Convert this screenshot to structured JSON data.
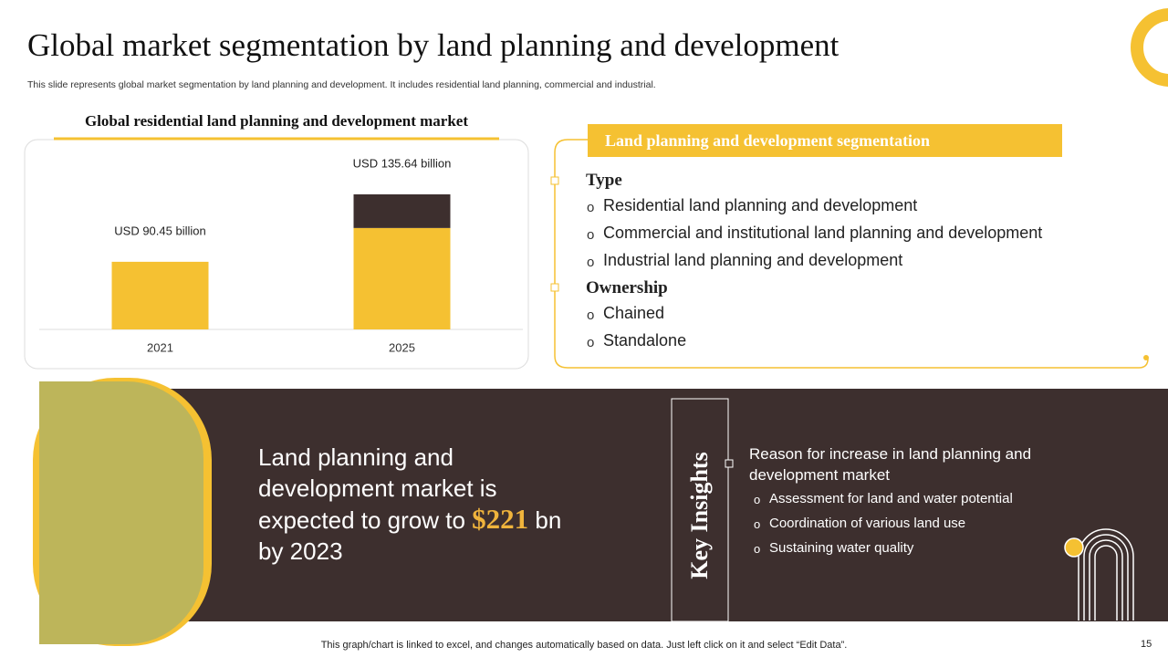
{
  "header": {
    "title": "Global market segmentation by land planning and development",
    "subtitle": "This slide represents global market segmentation by land planning and development. It includes residential land planning, commercial and industrial."
  },
  "chart_data": {
    "type": "bar",
    "title": "Global residential land planning and development market",
    "categories": [
      "2021",
      "2025"
    ],
    "series": [
      {
        "color": "#f5c132",
        "values": [
          90.45,
          135.64
        ],
        "value_labels": [
          "USD 90.45  billion",
          "USD 135.64  billion"
        ]
      },
      {
        "color": "#3d2f2e",
        "values": [
          null,
          45
        ]
      }
    ]
  },
  "segmentation": {
    "title": "Land planning  and development  segmentation",
    "groups": [
      {
        "heading": "Type",
        "items": [
          "Residential land planning and development",
          "Commercial and institutional land planning and development",
          "Industrial land planning and development"
        ]
      },
      {
        "heading": "Ownership",
        "items": [
          "Chained",
          "Standalone"
        ]
      }
    ]
  },
  "highlight": {
    "lines": [
      "Land planning and",
      "development market is",
      "expected to grow to"
    ],
    "amount": "$221",
    "unit": "bn",
    "last": "by 2023"
  },
  "insights": {
    "title": "Key Insights",
    "heading": "Reason for increase in land planning and development market",
    "items": [
      "Assessment for land and water potential",
      "Coordination of various land use",
      "Sustaining water quality"
    ]
  },
  "footer": "This graph/chart is linked to excel,  and changes automatically based on data. Just left click on it and select “Edit Data”.",
  "page_number": 15
}
